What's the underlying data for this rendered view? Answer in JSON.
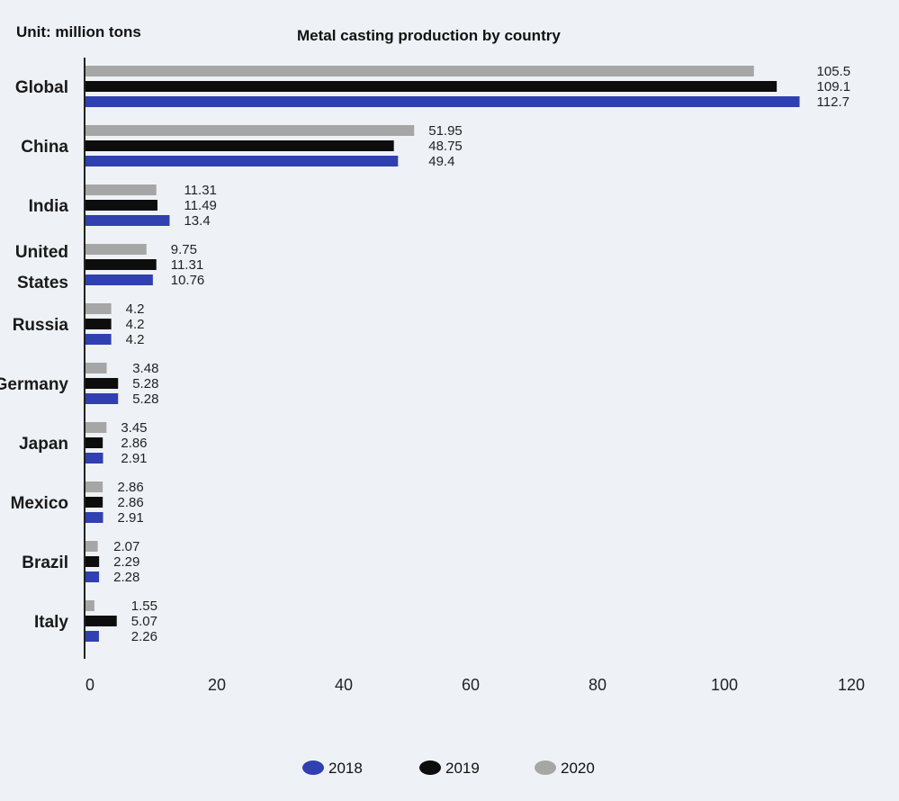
{
  "chart_data": {
    "type": "bar",
    "orientation": "horizontal",
    "title": "Metal casting production by country",
    "unit_label": "Unit: million tons",
    "categories": [
      "Global",
      "China",
      "India",
      "United States",
      "Russia",
      "Germany",
      "Japan",
      "Mexico",
      "Brazil",
      "Italy"
    ],
    "category_lines": [
      [
        "Global"
      ],
      [
        "China"
      ],
      [
        "India"
      ],
      [
        "United",
        "States"
      ],
      [
        "Russia"
      ],
      [
        "Germany"
      ],
      [
        "Japan"
      ],
      [
        "Mexico"
      ],
      [
        "Brazil"
      ],
      [
        "Italy"
      ]
    ],
    "series": [
      {
        "name": "2020",
        "color": "#a6a6a6",
        "values": [
          105.5,
          51.95,
          11.31,
          9.75,
          4.2,
          3.48,
          3.45,
          2.86,
          2.07,
          1.55
        ],
        "labels": [
          "105.5",
          "51.95",
          "11.31",
          "9.75",
          "4.2",
          "3.48",
          "3.45",
          "2.86",
          "2.07",
          "1.55"
        ]
      },
      {
        "name": "2019",
        "color": "#0d0d0d",
        "values": [
          109.1,
          48.75,
          11.49,
          11.31,
          4.2,
          5.28,
          2.86,
          2.86,
          2.29,
          5.07
        ],
        "labels": [
          "109.1",
          "48.75",
          "11.49",
          "11.31",
          "4.2",
          "5.28",
          "2.86",
          "2.86",
          "2.29",
          "5.07"
        ]
      },
      {
        "name": "2018",
        "color": "#3040b0",
        "values": [
          112.7,
          49.4,
          13.4,
          10.76,
          4.2,
          5.28,
          2.91,
          2.91,
          2.28,
          2.26
        ],
        "labels": [
          "112.7",
          "49.4",
          "13.4",
          "10.76",
          "4.2",
          "5.28",
          "2.91",
          "2.91",
          "2.28",
          "2.26"
        ]
      }
    ],
    "xlim": [
      0,
      120
    ],
    "xticks": [
      "0",
      "20",
      "40",
      "60",
      "80",
      "100",
      "120"
    ],
    "legend_order": [
      "2018",
      "2019",
      "2020"
    ],
    "legend_position": "bottom",
    "grid": false
  }
}
